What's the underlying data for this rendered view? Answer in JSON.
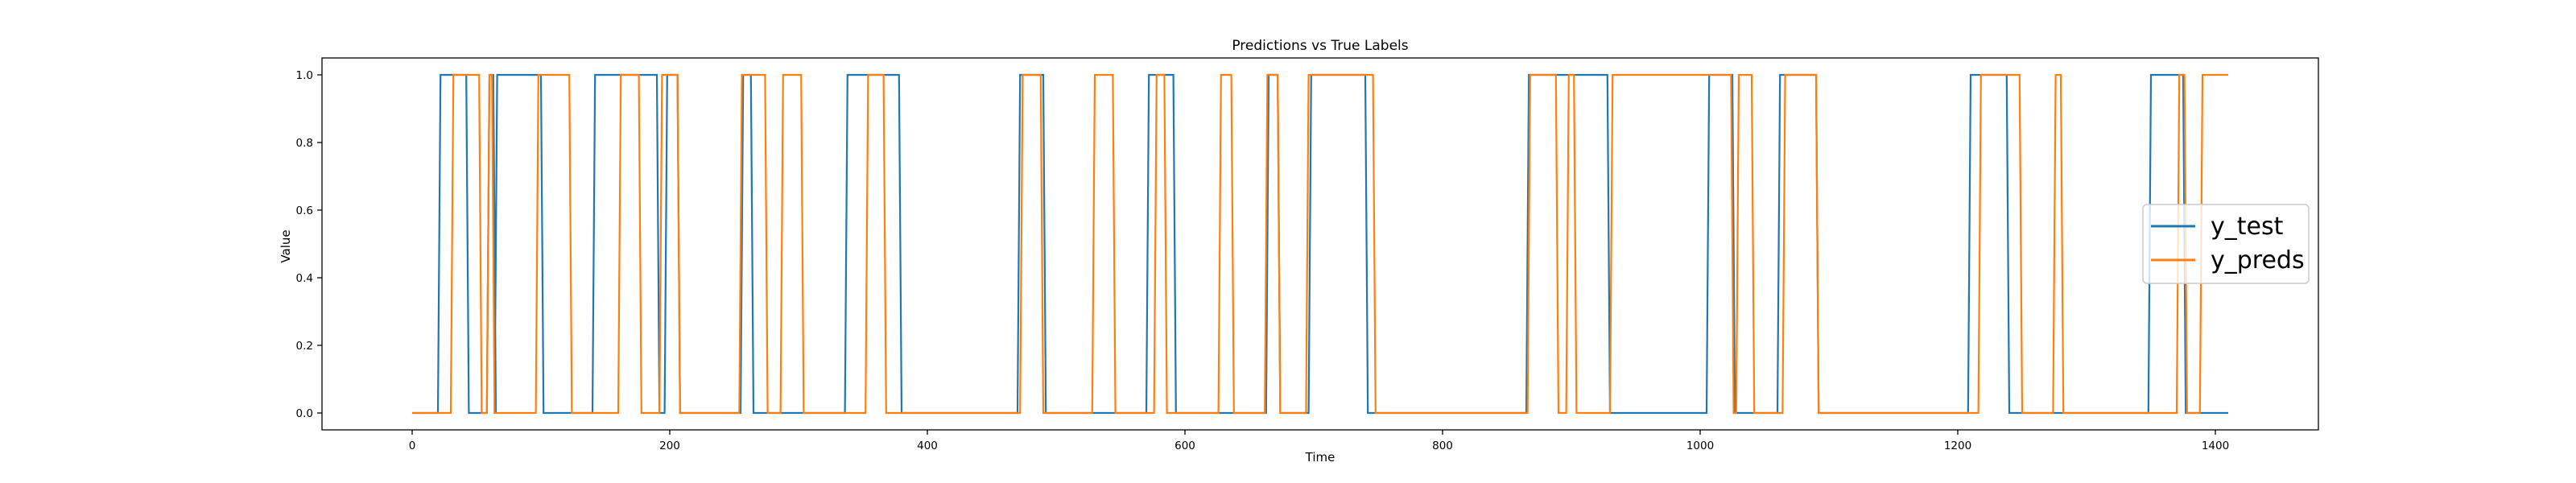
{
  "chart_data": {
    "type": "line",
    "title": "Predictions vs True Labels",
    "xlabel": "Time",
    "ylabel": "Value",
    "xlim": [
      -70,
      1480
    ],
    "ylim": [
      -0.05,
      1.05
    ],
    "xticks": [
      0,
      200,
      400,
      600,
      800,
      1000,
      1200,
      1400
    ],
    "yticks": [
      0.0,
      0.2,
      0.4,
      0.6,
      0.8,
      1.0
    ],
    "ytick_labels": [
      "0.0",
      "0.2",
      "0.4",
      "0.6",
      "0.8",
      "1.0"
    ],
    "grid": false,
    "legend_position": "center-right",
    "series": [
      {
        "name": "y_test",
        "color": "#1f77b4",
        "points": [
          [
            0,
            0
          ],
          [
            20,
            0
          ],
          [
            22,
            1
          ],
          [
            42,
            1
          ],
          [
            44,
            0
          ],
          [
            58,
            0
          ],
          [
            60,
            1
          ],
          [
            63,
            1
          ],
          [
            65,
            0
          ],
          [
            64,
            0
          ],
          [
            66,
            1
          ],
          [
            100,
            1
          ],
          [
            102,
            0
          ],
          [
            140,
            0
          ],
          [
            142,
            1
          ],
          [
            160,
            1
          ],
          [
            162,
            1
          ],
          [
            190,
            1
          ],
          [
            192,
            0
          ],
          [
            196,
            0
          ],
          [
            198,
            1
          ],
          [
            200,
            1
          ],
          [
            202,
            1
          ],
          [
            206,
            1
          ],
          [
            208,
            0
          ],
          [
            255,
            0
          ],
          [
            257,
            1
          ],
          [
            263,
            1
          ],
          [
            265,
            0
          ],
          [
            336,
            0
          ],
          [
            338,
            1
          ],
          [
            378,
            1
          ],
          [
            380,
            0
          ],
          [
            470,
            0
          ],
          [
            472,
            1
          ],
          [
            490,
            1
          ],
          [
            492,
            0
          ],
          [
            570,
            0
          ],
          [
            572,
            1
          ],
          [
            591,
            1
          ],
          [
            593,
            0
          ],
          [
            663,
            0
          ],
          [
            665,
            1
          ],
          [
            672,
            1
          ],
          [
            674,
            0
          ],
          [
            696,
            0
          ],
          [
            698,
            1
          ],
          [
            740,
            1
          ],
          [
            742,
            0
          ],
          [
            865,
            0
          ],
          [
            867,
            1
          ],
          [
            928,
            1
          ],
          [
            930,
            0
          ],
          [
            1005,
            0
          ],
          [
            1007,
            1
          ],
          [
            1025,
            1
          ],
          [
            1027,
            0
          ],
          [
            1060,
            0
          ],
          [
            1062,
            1
          ],
          [
            1070,
            1
          ],
          [
            1072,
            1
          ],
          [
            1090,
            1
          ],
          [
            1092,
            0
          ],
          [
            1208,
            0
          ],
          [
            1210,
            1
          ],
          [
            1238,
            1
          ],
          [
            1240,
            0
          ],
          [
            1348,
            0
          ],
          [
            1350,
            1
          ],
          [
            1375,
            1
          ],
          [
            1377,
            0
          ],
          [
            1410,
            0
          ]
        ]
      },
      {
        "name": "y_preds",
        "color": "#ff7f0e",
        "points": [
          [
            0,
            0
          ],
          [
            30,
            0
          ],
          [
            32,
            1
          ],
          [
            52,
            1
          ],
          [
            54,
            0
          ],
          [
            58,
            0
          ],
          [
            60,
            1
          ],
          [
            62,
            1
          ],
          [
            64,
            0
          ],
          [
            96,
            0
          ],
          [
            98,
            1
          ],
          [
            122,
            1
          ],
          [
            124,
            0
          ],
          [
            160,
            0
          ],
          [
            162,
            1
          ],
          [
            176,
            1
          ],
          [
            178,
            0
          ],
          [
            192,
            0
          ],
          [
            194,
            1
          ],
          [
            206,
            1
          ],
          [
            208,
            0
          ],
          [
            254,
            0
          ],
          [
            256,
            1
          ],
          [
            274,
            1
          ],
          [
            276,
            0
          ],
          [
            286,
            0
          ],
          [
            288,
            1
          ],
          [
            302,
            1
          ],
          [
            304,
            0
          ],
          [
            352,
            0
          ],
          [
            354,
            1
          ],
          [
            366,
            1
          ],
          [
            368,
            0
          ],
          [
            472,
            0
          ],
          [
            474,
            1
          ],
          [
            488,
            1
          ],
          [
            490,
            0
          ],
          [
            528,
            0
          ],
          [
            530,
            1
          ],
          [
            544,
            1
          ],
          [
            546,
            0
          ],
          [
            576,
            0
          ],
          [
            578,
            1
          ],
          [
            584,
            1
          ],
          [
            586,
            0
          ],
          [
            626,
            0
          ],
          [
            628,
            1
          ],
          [
            636,
            1
          ],
          [
            638,
            0
          ],
          [
            662,
            0
          ],
          [
            664,
            1
          ],
          [
            672,
            1
          ],
          [
            674,
            0
          ],
          [
            694,
            0
          ],
          [
            696,
            1
          ],
          [
            746,
            1
          ],
          [
            748,
            0
          ],
          [
            866,
            0
          ],
          [
            868,
            1
          ],
          [
            888,
            1
          ],
          [
            890,
            0
          ],
          [
            896,
            0
          ],
          [
            898,
            1
          ],
          [
            902,
            1
          ],
          [
            904,
            0
          ],
          [
            930,
            0
          ],
          [
            932,
            1
          ],
          [
            1024,
            1
          ],
          [
            1026,
            0
          ],
          [
            1028,
            0
          ],
          [
            1030,
            1
          ],
          [
            1040,
            1
          ],
          [
            1042,
            0
          ],
          [
            1064,
            0
          ],
          [
            1066,
            1
          ],
          [
            1090,
            1
          ],
          [
            1092,
            0
          ],
          [
            1216,
            0
          ],
          [
            1218,
            1
          ],
          [
            1248,
            1
          ],
          [
            1250,
            0
          ],
          [
            1274,
            0
          ],
          [
            1276,
            1
          ],
          [
            1280,
            1
          ],
          [
            1282,
            0
          ],
          [
            1370,
            0
          ],
          [
            1372,
            1
          ],
          [
            1376,
            1
          ],
          [
            1378,
            0
          ],
          [
            1388,
            0
          ],
          [
            1390,
            1
          ],
          [
            1410,
            1
          ]
        ]
      }
    ]
  }
}
